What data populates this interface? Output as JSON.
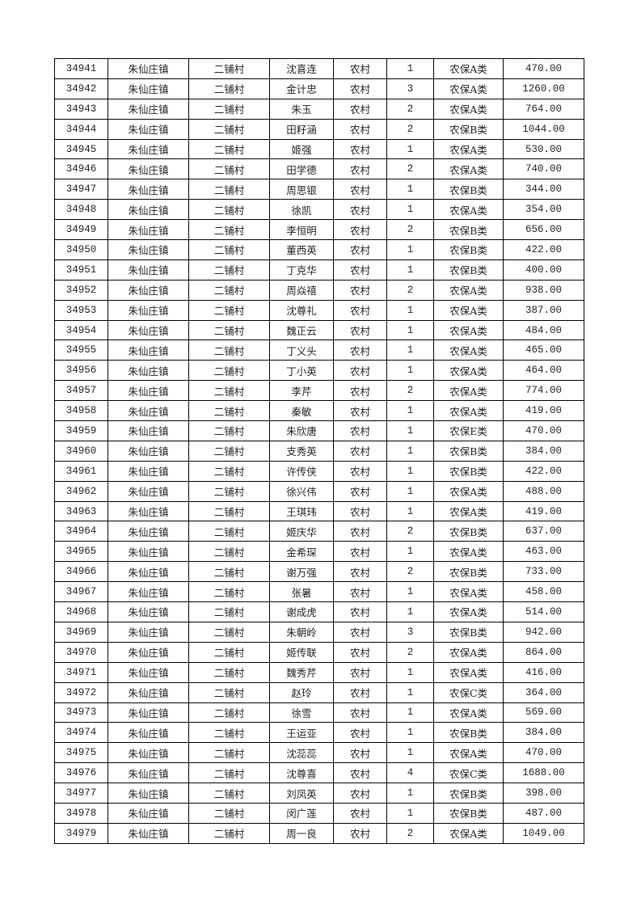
{
  "rows": [
    [
      "34941",
      "朱仙庄镇",
      "二铺村",
      "沈喜连",
      "农村",
      "1",
      "农保A类",
      "470.00"
    ],
    [
      "34942",
      "朱仙庄镇",
      "二铺村",
      "金计忠",
      "农村",
      "3",
      "农保A类",
      "1260.00"
    ],
    [
      "34943",
      "朱仙庄镇",
      "二铺村",
      "朱玉",
      "农村",
      "2",
      "农保A类",
      "764.00"
    ],
    [
      "34944",
      "朱仙庄镇",
      "二铺村",
      "田籽涵",
      "农村",
      "2",
      "农保B类",
      "1044.00"
    ],
    [
      "34945",
      "朱仙庄镇",
      "二铺村",
      "姬强",
      "农村",
      "1",
      "农保A类",
      "530.00"
    ],
    [
      "34946",
      "朱仙庄镇",
      "二铺村",
      "田学德",
      "农村",
      "2",
      "农保A类",
      "740.00"
    ],
    [
      "34947",
      "朱仙庄镇",
      "二铺村",
      "周思银",
      "农村",
      "1",
      "农保B类",
      "344.00"
    ],
    [
      "34948",
      "朱仙庄镇",
      "二铺村",
      "徐凯",
      "农村",
      "1",
      "农保A类",
      "354.00"
    ],
    [
      "34949",
      "朱仙庄镇",
      "二铺村",
      "李恒明",
      "农村",
      "2",
      "农保B类",
      "656.00"
    ],
    [
      "34950",
      "朱仙庄镇",
      "二铺村",
      "董西英",
      "农村",
      "1",
      "农保B类",
      "422.00"
    ],
    [
      "34951",
      "朱仙庄镇",
      "二铺村",
      "丁克华",
      "农村",
      "1",
      "农保B类",
      "400.00"
    ],
    [
      "34952",
      "朱仙庄镇",
      "二铺村",
      "周焱禧",
      "农村",
      "2",
      "农保A类",
      "938.00"
    ],
    [
      "34953",
      "朱仙庄镇",
      "二铺村",
      "沈尊礼",
      "农村",
      "1",
      "农保A类",
      "387.00"
    ],
    [
      "34954",
      "朱仙庄镇",
      "二铺村",
      "魏正云",
      "农村",
      "1",
      "农保A类",
      "484.00"
    ],
    [
      "34955",
      "朱仙庄镇",
      "二铺村",
      "丁义头",
      "农村",
      "1",
      "农保A类",
      "465.00"
    ],
    [
      "34956",
      "朱仙庄镇",
      "二铺村",
      "丁小英",
      "农村",
      "1",
      "农保A类",
      "464.00"
    ],
    [
      "34957",
      "朱仙庄镇",
      "二铺村",
      "李芹",
      "农村",
      "2",
      "农保A类",
      "774.00"
    ],
    [
      "34958",
      "朱仙庄镇",
      "二铺村",
      "秦敏",
      "农村",
      "1",
      "农保A类",
      "419.00"
    ],
    [
      "34959",
      "朱仙庄镇",
      "二铺村",
      "朱欣唐",
      "农村",
      "1",
      "农保E类",
      "470.00"
    ],
    [
      "34960",
      "朱仙庄镇",
      "二铺村",
      "支秀英",
      "农村",
      "1",
      "农保B类",
      "384.00"
    ],
    [
      "34961",
      "朱仙庄镇",
      "二铺村",
      "许传侠",
      "农村",
      "1",
      "农保B类",
      "422.00"
    ],
    [
      "34962",
      "朱仙庄镇",
      "二铺村",
      "徐兴伟",
      "农村",
      "1",
      "农保A类",
      "488.00"
    ],
    [
      "34963",
      "朱仙庄镇",
      "二铺村",
      "王琪玮",
      "农村",
      "1",
      "农保A类",
      "419.00"
    ],
    [
      "34964",
      "朱仙庄镇",
      "二铺村",
      "姬庆华",
      "农村",
      "2",
      "农保B类",
      "637.00"
    ],
    [
      "34965",
      "朱仙庄镇",
      "二铺村",
      "金希琛",
      "农村",
      "1",
      "农保A类",
      "463.00"
    ],
    [
      "34966",
      "朱仙庄镇",
      "二铺村",
      "谢万强",
      "农村",
      "2",
      "农保B类",
      "733.00"
    ],
    [
      "34967",
      "朱仙庄镇",
      "二铺村",
      "张暑",
      "农村",
      "1",
      "农保A类",
      "458.00"
    ],
    [
      "34968",
      "朱仙庄镇",
      "二铺村",
      "谢成虎",
      "农村",
      "1",
      "农保A类",
      "514.00"
    ],
    [
      "34969",
      "朱仙庄镇",
      "二铺村",
      "朱朝岭",
      "农村",
      "3",
      "农保B类",
      "942.00"
    ],
    [
      "34970",
      "朱仙庄镇",
      "二铺村",
      "姬传联",
      "农村",
      "2",
      "农保A类",
      "864.00"
    ],
    [
      "34971",
      "朱仙庄镇",
      "二铺村",
      "魏秀芹",
      "农村",
      "1",
      "农保A类",
      "416.00"
    ],
    [
      "34972",
      "朱仙庄镇",
      "二铺村",
      "赵玲",
      "农村",
      "1",
      "农保C类",
      "364.00"
    ],
    [
      "34973",
      "朱仙庄镇",
      "二铺村",
      "徐雪",
      "农村",
      "1",
      "农保A类",
      "569.00"
    ],
    [
      "34974",
      "朱仙庄镇",
      "二铺村",
      "王运亚",
      "农村",
      "1",
      "农保B类",
      "384.00"
    ],
    [
      "34975",
      "朱仙庄镇",
      "二铺村",
      "沈蕊蕊",
      "农村",
      "1",
      "农保A类",
      "470.00"
    ],
    [
      "34976",
      "朱仙庄镇",
      "二铺村",
      "沈尊喜",
      "农村",
      "4",
      "农保C类",
      "1688.00"
    ],
    [
      "34977",
      "朱仙庄镇",
      "二铺村",
      "刘凤英",
      "农村",
      "1",
      "农保B类",
      "398.00"
    ],
    [
      "34978",
      "朱仙庄镇",
      "二铺村",
      "闵广莲",
      "农村",
      "1",
      "农保B类",
      "487.00"
    ],
    [
      "34979",
      "朱仙庄镇",
      "二铺村",
      "周一良",
      "农村",
      "2",
      "农保A类",
      "1049.00"
    ]
  ]
}
